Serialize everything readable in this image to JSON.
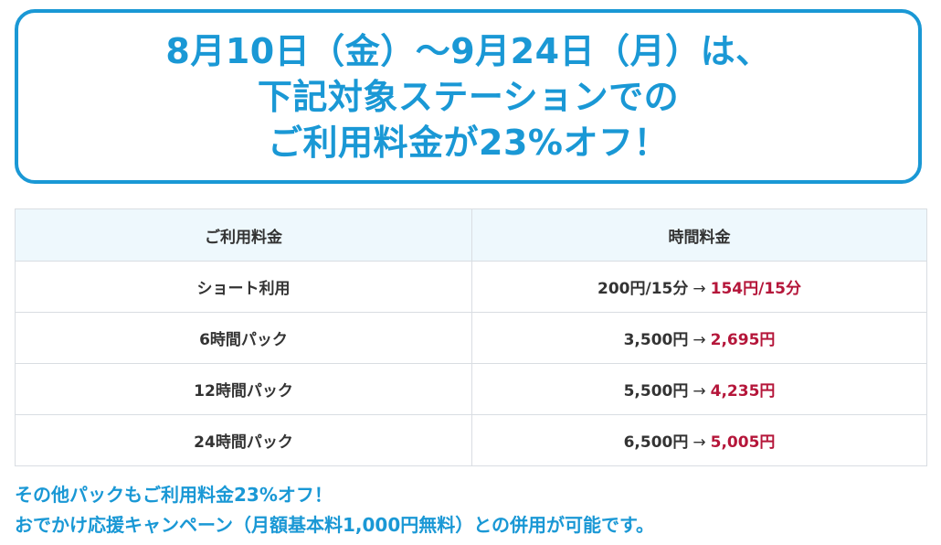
{
  "headline": {
    "lines": [
      "8月10日（金）〜9月24日（月）は、",
      "下記対象ステーションでの",
      "ご利用料金が23%オフ！"
    ]
  },
  "colors": {
    "accent": "#1a98d5",
    "price_new": "#b5163a",
    "header_bg": "#eef8fd",
    "border": "#d9dde2",
    "text": "#333333"
  },
  "table": {
    "headers": [
      "ご利用料金",
      "時間料金"
    ],
    "arrow": "→",
    "rows": [
      {
        "plan": "ショート利用",
        "old_price": "200円/15分",
        "new_price": "154円/15分"
      },
      {
        "plan": "6時間パック",
        "old_price": "3,500円",
        "new_price": "2,695円"
      },
      {
        "plan": "12時間パック",
        "old_price": "5,500円",
        "new_price": "4,235円"
      },
      {
        "plan": "24時間パック",
        "old_price": "6,500円",
        "new_price": "5,005円"
      }
    ]
  },
  "footer": {
    "line1": "その他パックもご利用料金23%オフ！",
    "line2": "おでかけ応援キャンペーン（月額基本料1,000円無料）との併用が可能です。"
  }
}
